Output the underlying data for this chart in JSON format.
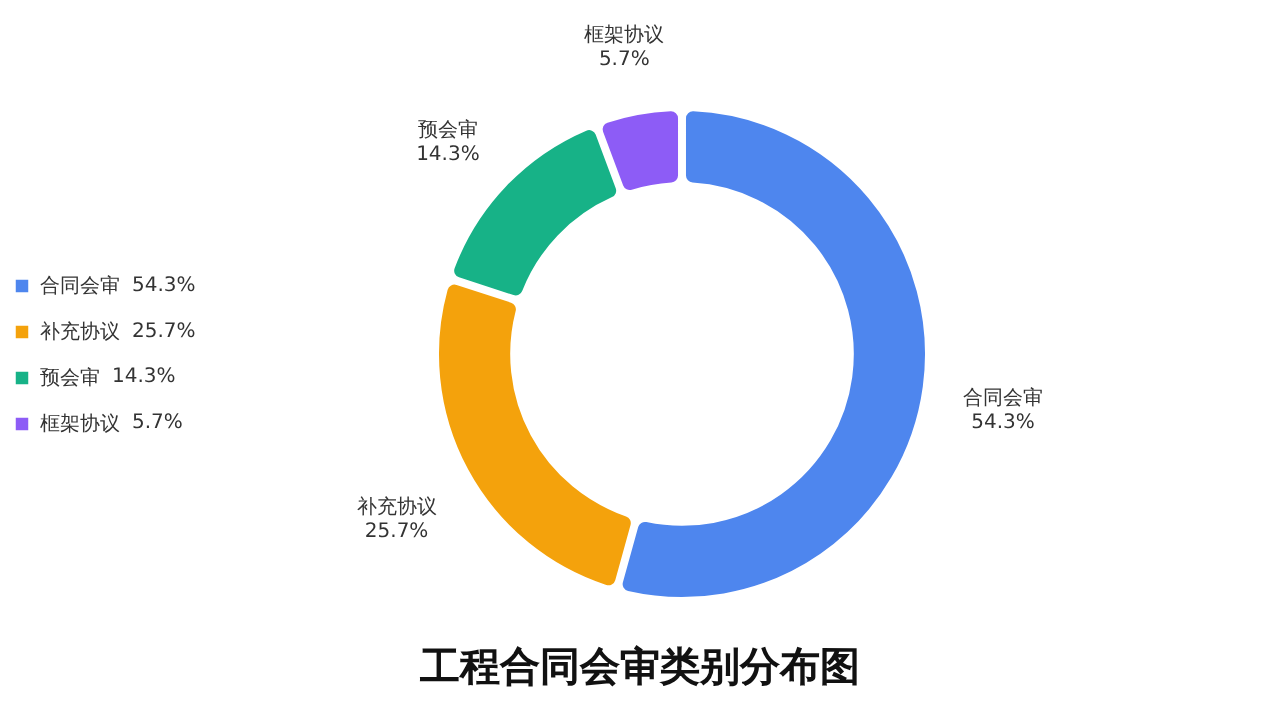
{
  "chart_data": {
    "type": "donut",
    "title": "工程合同会审类别分布图",
    "categories": [
      "合同会审",
      "补充协议",
      "预会审",
      "框架协议"
    ],
    "values": [
      54.3,
      25.7,
      14.3,
      5.7
    ],
    "value_labels": [
      "54.3%",
      "25.7%",
      "14.3%",
      "5.7%"
    ],
    "colors": [
      "#4e86ee",
      "#f4a20c",
      "#17b287",
      "#8d5cf6"
    ],
    "legend": "left"
  }
}
